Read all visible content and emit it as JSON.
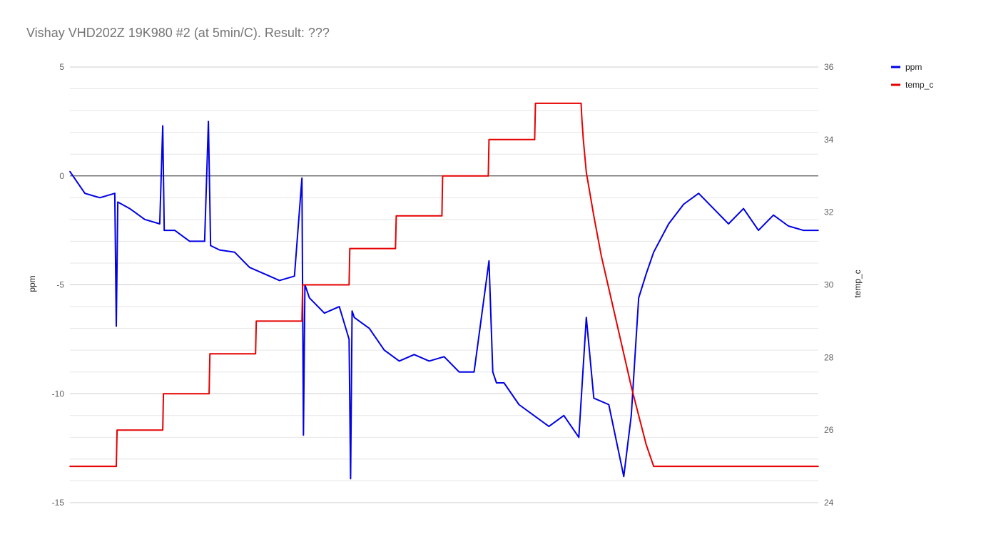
{
  "chart_data": {
    "type": "line",
    "title": "Vishay VHD202Z 19K980 #2 (at 5min/C).  Result: ???",
    "xlabel": "",
    "grid": true,
    "legend_position": "right",
    "y_left": {
      "label": "ppm",
      "ylim": [
        -15,
        5
      ],
      "ticks": [
        5,
        0,
        -5,
        -10,
        -15
      ],
      "minor_step": 1
    },
    "y_right": {
      "label": "temp_c",
      "ylim": [
        24,
        36
      ],
      "ticks": [
        36,
        34,
        32,
        30,
        28,
        26,
        24
      ]
    },
    "x_range": [
      0,
      1
    ],
    "series": [
      {
        "name": "ppm",
        "axis": "left",
        "color": "#0000e6",
        "x": [
          0.0,
          0.02,
          0.04,
          0.06,
          0.062,
          0.064,
          0.08,
          0.1,
          0.12,
          0.124,
          0.126,
          0.14,
          0.16,
          0.18,
          0.185,
          0.188,
          0.2,
          0.22,
          0.24,
          0.26,
          0.28,
          0.3,
          0.31,
          0.312,
          0.314,
          0.32,
          0.34,
          0.36,
          0.373,
          0.375,
          0.377,
          0.38,
          0.4,
          0.42,
          0.44,
          0.46,
          0.48,
          0.5,
          0.52,
          0.54,
          0.56,
          0.565,
          0.57,
          0.58,
          0.6,
          0.62,
          0.64,
          0.66,
          0.68,
          0.69,
          0.7,
          0.72,
          0.74,
          0.75,
          0.76,
          0.77,
          0.78,
          0.8,
          0.82,
          0.84,
          0.86,
          0.88,
          0.9,
          0.92,
          0.94,
          0.96,
          0.98,
          1.0
        ],
        "y": [
          0.2,
          -0.8,
          -1.0,
          -0.8,
          -6.9,
          -1.2,
          -1.5,
          -2.0,
          -2.2,
          2.3,
          -2.5,
          -2.5,
          -3.0,
          -3.0,
          2.5,
          -3.2,
          -3.4,
          -3.5,
          -4.2,
          -4.5,
          -4.8,
          -4.6,
          -0.1,
          -11.9,
          -5.0,
          -5.6,
          -6.3,
          -6.0,
          -7.5,
          -13.9,
          -6.2,
          -6.5,
          -7.0,
          -8.0,
          -8.5,
          -8.2,
          -8.5,
          -8.3,
          -9.0,
          -9.0,
          -3.9,
          -9.0,
          -9.5,
          -9.5,
          -10.5,
          -11.0,
          -11.5,
          -11.0,
          -12.0,
          -6.5,
          -10.2,
          -10.5,
          -13.8,
          -11.0,
          -5.6,
          -4.5,
          -3.5,
          -2.2,
          -1.3,
          -0.8,
          -1.5,
          -2.2,
          -1.5,
          -2.5,
          -1.8,
          -2.3,
          -2.5,
          -2.5
        ]
      },
      {
        "name": "temp_c",
        "axis": "right",
        "color": "#e60000",
        "x": [
          0.0,
          0.062,
          0.063,
          0.124,
          0.125,
          0.186,
          0.187,
          0.248,
          0.249,
          0.31,
          0.311,
          0.373,
          0.374,
          0.435,
          0.436,
          0.497,
          0.498,
          0.559,
          0.56,
          0.621,
          0.622,
          0.683,
          0.684,
          0.686,
          0.69,
          0.7,
          0.71,
          0.72,
          0.73,
          0.74,
          0.75,
          0.76,
          0.77,
          0.78,
          0.79,
          0.8,
          1.0
        ],
        "y": [
          25.0,
          25.0,
          26.0,
          26.0,
          27.0,
          27.0,
          28.1,
          28.1,
          29.0,
          29.0,
          30.0,
          30.0,
          31.0,
          31.0,
          31.9,
          31.9,
          33.0,
          33.0,
          34.0,
          34.0,
          35.0,
          35.0,
          34.6,
          34.0,
          33.1,
          31.9,
          30.8,
          29.9,
          29.0,
          28.1,
          27.2,
          26.4,
          25.6,
          25.0,
          25.0,
          25.0,
          25.0
        ]
      }
    ]
  }
}
